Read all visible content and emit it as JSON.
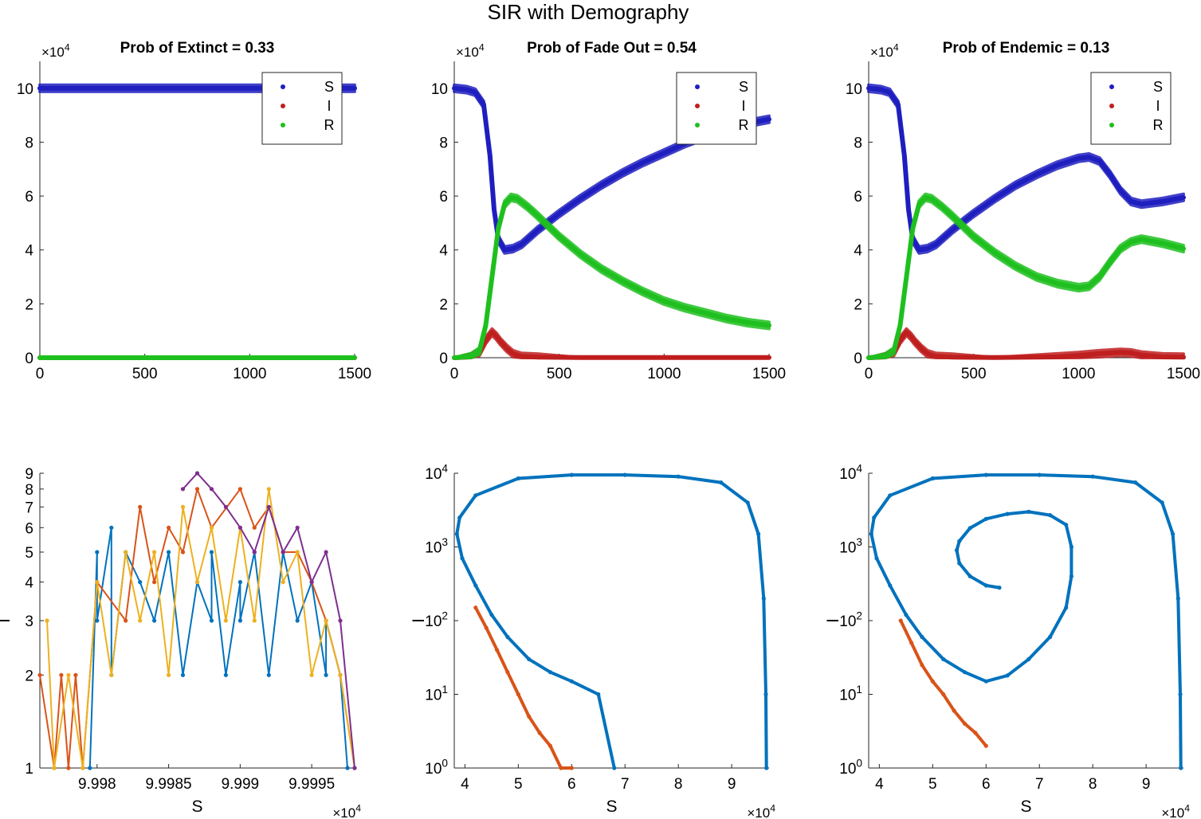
{
  "figure": {
    "title": "SIR with Demography"
  },
  "colors": {
    "S": "#1f1fbf",
    "I": "#bf1f1f",
    "R": "#1fbf1f",
    "palette": [
      "#0072BD",
      "#D95319",
      "#EDB120",
      "#7E2F8E",
      "#77AC30",
      "#4DBEEE",
      "#A2142F"
    ]
  },
  "chart_data": [
    {
      "type": "line",
      "title": "Prob of Extinct = 0.33",
      "xlabel": "",
      "ylabel": "",
      "xlim": [
        0,
        1500
      ],
      "ylim": [
        0,
        110000
      ],
      "xticks": [
        0,
        500,
        1000,
        1500
      ],
      "xtick_labels": [
        "0",
        "500",
        "1000",
        "1500"
      ],
      "yticks": [
        0,
        20000,
        40000,
        60000,
        80000,
        100000
      ],
      "ytick_labels": [
        "0",
        "2",
        "4",
        "6",
        "8",
        "10"
      ],
      "y_exponent": "4",
      "legend": {
        "placement": "top-right",
        "entries": [
          "S",
          "I",
          "R"
        ]
      },
      "series": [
        {
          "name": "S",
          "x": [
            0,
            1500
          ],
          "y": [
            100000,
            100000
          ]
        },
        {
          "name": "I",
          "x": [
            0,
            1500
          ],
          "y": [
            0,
            0
          ]
        },
        {
          "name": "R",
          "x": [
            0,
            1500
          ],
          "y": [
            0,
            0
          ]
        }
      ]
    },
    {
      "type": "line",
      "title": "Prob of Fade Out = 0.54",
      "xlabel": "",
      "ylabel": "",
      "xlim": [
        0,
        1500
      ],
      "ylim": [
        0,
        110000
      ],
      "xticks": [
        0,
        500,
        1000,
        1500
      ],
      "xtick_labels": [
        "0",
        "500",
        "1000",
        "1500"
      ],
      "yticks": [
        0,
        20000,
        40000,
        60000,
        80000,
        100000
      ],
      "ytick_labels": [
        "0",
        "2",
        "4",
        "6",
        "8",
        "10"
      ],
      "y_exponent": "4",
      "legend": {
        "placement": "top-right",
        "entries": [
          "S",
          "I",
          "R"
        ]
      },
      "series": [
        {
          "name": "S",
          "x": [
            0,
            60,
            100,
            140,
            170,
            190,
            210,
            240,
            280,
            320,
            400,
            500,
            600,
            700,
            800,
            900,
            1000,
            1100,
            1200,
            1300,
            1400,
            1500
          ],
          "y": [
            100000,
            99500,
            98500,
            94000,
            75000,
            55000,
            44000,
            40000,
            40500,
            42000,
            47500,
            53500,
            59000,
            64000,
            68500,
            72500,
            76000,
            79500,
            82500,
            85000,
            87000,
            88500
          ]
        },
        {
          "name": "I",
          "x": [
            0,
            80,
            120,
            150,
            180,
            200,
            220,
            250,
            280,
            320,
            400,
            600,
            900,
            1500
          ],
          "y": [
            0,
            300,
            2000,
            6500,
            9500,
            8000,
            6000,
            3500,
            1500,
            500,
            200,
            100,
            80,
            50
          ]
        },
        {
          "name": "R",
          "x": [
            0,
            80,
            120,
            150,
            180,
            210,
            240,
            270,
            300,
            350,
            400,
            500,
            600,
            700,
            800,
            900,
            1000,
            1100,
            1200,
            1300,
            1400,
            1500
          ],
          "y": [
            0,
            400,
            2500,
            12000,
            30000,
            48000,
            57000,
            59500,
            59000,
            56000,
            52500,
            45000,
            38500,
            33000,
            28500,
            24500,
            21000,
            18500,
            16500,
            14500,
            13000,
            12000
          ]
        }
      ]
    },
    {
      "type": "line",
      "title": "Prob of Endemic = 0.13",
      "xlabel": "",
      "ylabel": "",
      "xlim": [
        0,
        1500
      ],
      "ylim": [
        0,
        110000
      ],
      "xticks": [
        0,
        500,
        1000,
        1500
      ],
      "xtick_labels": [
        "0",
        "500",
        "1000",
        "1500"
      ],
      "yticks": [
        0,
        20000,
        40000,
        60000,
        80000,
        100000
      ],
      "ytick_labels": [
        "0",
        "2",
        "4",
        "6",
        "8",
        "10"
      ],
      "y_exponent": "4",
      "legend": {
        "placement": "top-right",
        "entries": [
          "S",
          "I",
          "R"
        ]
      },
      "series": [
        {
          "name": "S",
          "x": [
            0,
            60,
            100,
            140,
            170,
            190,
            210,
            240,
            280,
            320,
            400,
            500,
            600,
            700,
            800,
            900,
            1000,
            1050,
            1100,
            1150,
            1200,
            1250,
            1300,
            1400,
            1500
          ],
          "y": [
            100000,
            99500,
            98500,
            94000,
            75000,
            55000,
            44000,
            40000,
            40500,
            42000,
            47500,
            53500,
            59000,
            64000,
            68000,
            71500,
            74000,
            74500,
            73000,
            68000,
            62000,
            58000,
            57000,
            58000,
            59500
          ]
        },
        {
          "name": "I",
          "x": [
            0,
            80,
            120,
            150,
            180,
            200,
            220,
            250,
            280,
            320,
            400,
            600,
            900,
            1000,
            1100,
            1200,
            1250,
            1300,
            1400,
            1500
          ],
          "y": [
            0,
            300,
            2000,
            6500,
            9500,
            8000,
            6000,
            3500,
            1500,
            500,
            200,
            100,
            300,
            800,
            1500,
            2000,
            1800,
            1000,
            300,
            200
          ]
        },
        {
          "name": "R",
          "x": [
            0,
            80,
            120,
            150,
            180,
            210,
            240,
            270,
            300,
            350,
            400,
            500,
            600,
            700,
            800,
            900,
            1000,
            1050,
            1100,
            1150,
            1200,
            1250,
            1300,
            1400,
            1500
          ],
          "y": [
            0,
            400,
            2500,
            12000,
            30000,
            48000,
            57000,
            59500,
            59000,
            56000,
            52500,
            45000,
            39000,
            34000,
            30000,
            27500,
            26000,
            26500,
            30000,
            35500,
            40500,
            43000,
            44000,
            42500,
            40500
          ]
        }
      ]
    },
    {
      "type": "line",
      "title": "",
      "xlabel": "S",
      "ylabel": "I",
      "xlim": [
        99976,
        99998
      ],
      "ylim": [
        1,
        9
      ],
      "yscale": "log",
      "xticks": [
        99980,
        99985,
        99990,
        99995
      ],
      "xtick_labels": [
        "9.998",
        "9.9985",
        "9.999",
        "9.9995"
      ],
      "x_exponent": "4",
      "yticks": [
        1,
        2,
        3,
        4,
        5,
        6,
        7,
        8,
        9
      ],
      "ytick_labels": [
        "1",
        "2",
        "3",
        "4",
        "5",
        "6",
        "7",
        "8",
        "9"
      ],
      "series": [
        {
          "x": [
            99979.5,
            99980,
            99980,
            99981,
            99981,
            99982,
            99983,
            99984,
            99985,
            99986,
            99987,
            99988,
            99988,
            99989,
            99990,
            99990,
            99991,
            99992,
            99993,
            99994,
            99995,
            99996,
            99996,
            99997,
            99997.5
          ],
          "y": [
            1,
            5,
            3,
            6,
            2,
            5,
            4,
            3,
            5,
            2,
            4,
            3,
            5,
            2,
            4,
            3,
            5,
            2,
            5,
            3,
            4,
            2,
            3,
            2,
            1
          ]
        },
        {
          "x": [
            99976,
            99977,
            99977.5,
            99978,
            99978.5,
            99979,
            99980,
            99982,
            99983,
            99984,
            99985,
            99986,
            99987,
            99988,
            99990,
            99991,
            99992,
            99993,
            99994,
            99995,
            99996,
            99997,
            99998
          ],
          "y": [
            2,
            1,
            2,
            1,
            2,
            1,
            4,
            3,
            7,
            4,
            6,
            5,
            8,
            6,
            8,
            6,
            7,
            5,
            5,
            4,
            3,
            2,
            1
          ]
        },
        {
          "x": [
            99976.5,
            99977,
            99978,
            99979,
            99980,
            99981,
            99982,
            99983,
            99984,
            99985,
            99986,
            99987,
            99988,
            99989,
            99990,
            99991,
            99992,
            99993,
            99994,
            99995,
            99996,
            99997,
            99998
          ],
          "y": [
            3,
            1,
            2,
            1,
            4,
            2,
            5,
            3,
            5,
            2,
            7,
            4,
            6,
            3,
            6,
            3,
            8,
            4,
            5,
            2,
            3,
            2,
            1
          ]
        },
        {
          "x": [
            99986,
            99987,
            99988,
            99989,
            99990,
            99991,
            99992,
            99993,
            99994,
            99995,
            99996,
            99997,
            99998
          ],
          "y": [
            8,
            9,
            8,
            7,
            6,
            5,
            7,
            5,
            6,
            4,
            5,
            3,
            1
          ]
        }
      ]
    },
    {
      "type": "line",
      "title": "",
      "xlabel": "S",
      "ylabel": "I",
      "xlim": [
        38000,
        97000
      ],
      "ylim": [
        1,
        10000
      ],
      "yscale": "log",
      "xticks": [
        40000,
        50000,
        60000,
        70000,
        80000,
        90000
      ],
      "xtick_labels": [
        "4",
        "5",
        "6",
        "7",
        "8",
        "9"
      ],
      "x_exponent": "4",
      "yticks": [
        1,
        10,
        100,
        1000,
        10000
      ],
      "ytick_labels": [
        "10^0",
        "10^1",
        "10^2",
        "10^3",
        "10^4"
      ],
      "series": [
        {
          "x": [
            96500,
            96400,
            96000,
            95000,
            93000,
            88000,
            80000,
            70000,
            60000,
            50000,
            42000,
            39000,
            38500,
            39500,
            42000,
            45000,
            48000,
            52000,
            56000,
            60000,
            65000,
            68000
          ],
          "y": [
            1,
            10,
            200,
            1500,
            4000,
            7500,
            9000,
            9500,
            9500,
            8500,
            5000,
            2500,
            1500,
            700,
            300,
            120,
            60,
            30,
            20,
            15,
            10,
            1
          ]
        },
        {
          "x": [
            42000,
            44000,
            46000,
            48000,
            50000,
            52000,
            54000,
            56000,
            58000,
            60000
          ],
          "y": [
            150,
            80,
            40,
            20,
            10,
            5,
            3,
            2,
            1,
            1
          ]
        }
      ]
    },
    {
      "type": "line",
      "title": "",
      "xlabel": "S",
      "ylabel": "I",
      "xlim": [
        38000,
        97000
      ],
      "ylim": [
        1,
        10000
      ],
      "yscale": "log",
      "xticks": [
        40000,
        50000,
        60000,
        70000,
        80000,
        90000
      ],
      "xtick_labels": [
        "4",
        "5",
        "6",
        "7",
        "8",
        "9"
      ],
      "x_exponent": "4",
      "yticks": [
        1,
        10,
        100,
        1000,
        10000
      ],
      "ytick_labels": [
        "10^0",
        "10^1",
        "10^2",
        "10^3",
        "10^4"
      ],
      "series": [
        {
          "x": [
            96500,
            96400,
            96000,
            95000,
            93000,
            88000,
            80000,
            70000,
            60000,
            50000,
            42000,
            39000,
            38500,
            39500,
            42000,
            45000,
            48000,
            52000,
            56000,
            60000,
            64000,
            68000,
            72000,
            75000,
            76000,
            76000,
            75000,
            72000,
            68000,
            64000,
            60000,
            57000,
            55000,
            54500,
            55000,
            57000,
            60000,
            62500
          ],
          "y": [
            1,
            10,
            200,
            1500,
            4000,
            7500,
            9000,
            9500,
            9500,
            8500,
            5000,
            2500,
            1500,
            700,
            300,
            120,
            60,
            30,
            20,
            15,
            18,
            30,
            60,
            150,
            400,
            1000,
            2000,
            2700,
            3000,
            2800,
            2400,
            1800,
            1200,
            900,
            600,
            400,
            300,
            280
          ]
        },
        {
          "x": [
            44000,
            46000,
            48000,
            50000,
            52000,
            54000,
            56000,
            58000,
            60000
          ],
          "y": [
            100,
            50,
            25,
            15,
            10,
            6,
            4,
            3,
            2
          ]
        }
      ]
    }
  ]
}
